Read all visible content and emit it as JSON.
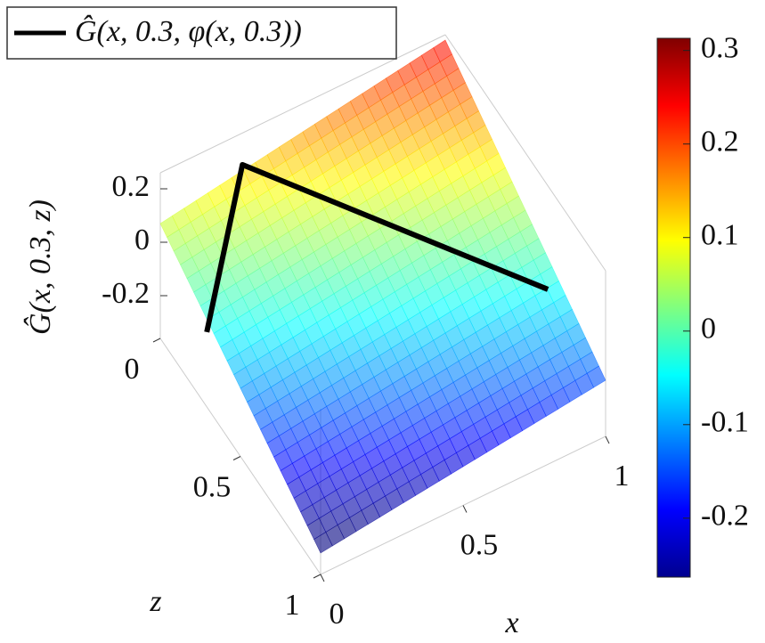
{
  "chart_data": {
    "type": "surface",
    "legend_label": "Ĝ(x, 0.3, φ(x, 0.3))",
    "x_label": "x",
    "z_label": "z",
    "value_label": "Ĝ(x, 0.3, z)",
    "xlim": [
      0,
      1
    ],
    "zlim": [
      0,
      1
    ],
    "vlim": [
      -0.36,
      0.26
    ],
    "xticks": [
      0,
      0.5,
      1
    ],
    "zticks": [
      0,
      0.5,
      1
    ],
    "vticks": [
      -0.2,
      0,
      0.2
    ],
    "surface": {
      "x": [
        0,
        1
      ],
      "z": [
        0,
        1
      ],
      "values": [
        [
          0.07,
          0.24
        ],
        [
          -0.28,
          -0.15
        ]
      ]
    },
    "line": {
      "color": "#000000",
      "x": [
        0,
        0.26,
        0.91
      ],
      "z": [
        0.29,
        0.05,
        0.8
      ],
      "values": [
        -0.08,
        0.2,
        0.06
      ]
    },
    "colorbar": {
      "clim": [
        -0.263,
        0.313
      ],
      "ticks": [
        -0.2,
        -0.1,
        0,
        0.1,
        0.2,
        0.3
      ]
    }
  }
}
